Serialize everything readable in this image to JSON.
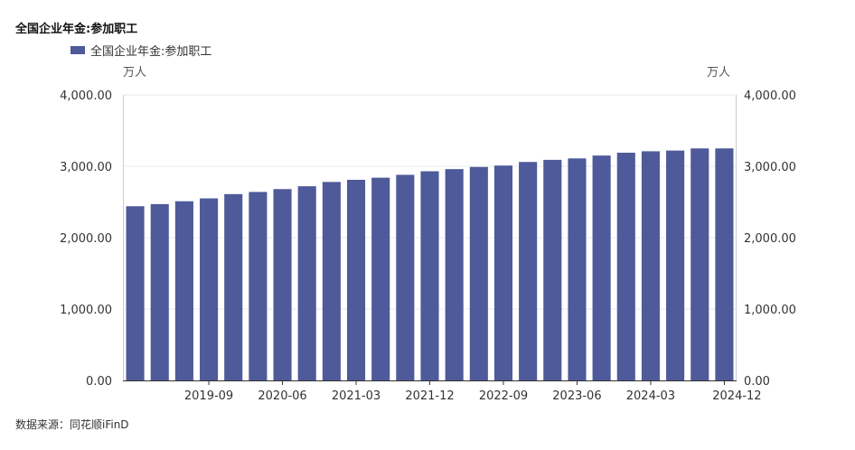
{
  "title": "全国企业年金:参加职工",
  "source": "数据来源：同花顺iFinD",
  "colors": {
    "bar": "#4e5a99",
    "grid": "#e8e8e8",
    "axis": "#333333",
    "tick_text": "#333333"
  },
  "chart_data": {
    "type": "bar",
    "title": "全国企业年金:参加职工",
    "ylabel_left": "万人",
    "ylabel_right": "万人",
    "ylim": [
      0,
      4000
    ],
    "yticks": [
      0,
      1000,
      2000,
      3000,
      4000
    ],
    "ytick_labels": [
      "0.00",
      "1,000.00",
      "2,000.00",
      "3,000.00",
      "4,000.00"
    ],
    "legend_position": "top-left",
    "grid": true,
    "x_tick_labels": [
      "2019-09",
      "2020-06",
      "2021-03",
      "2021-12",
      "2022-09",
      "2023-06",
      "2024-03",
      "2024-12"
    ],
    "categories": [
      "2018-12",
      "2019-03",
      "2019-06",
      "2019-09",
      "2019-12",
      "2020-03",
      "2020-06",
      "2020-09",
      "2020-12",
      "2021-03",
      "2021-06",
      "2021-09",
      "2021-12",
      "2022-03",
      "2022-06",
      "2022-09",
      "2022-12",
      "2023-03",
      "2023-06",
      "2023-09",
      "2023-12",
      "2024-03",
      "2024-06",
      "2024-09",
      "2024-12"
    ],
    "series": [
      {
        "name": "全国企业年金:参加职工",
        "values": [
          2440,
          2470,
          2510,
          2550,
          2610,
          2640,
          2680,
          2720,
          2780,
          2810,
          2840,
          2880,
          2930,
          2960,
          2990,
          3010,
          3060,
          3090,
          3110,
          3150,
          3190,
          3210,
          3220,
          3250,
          3250
        ]
      }
    ]
  }
}
